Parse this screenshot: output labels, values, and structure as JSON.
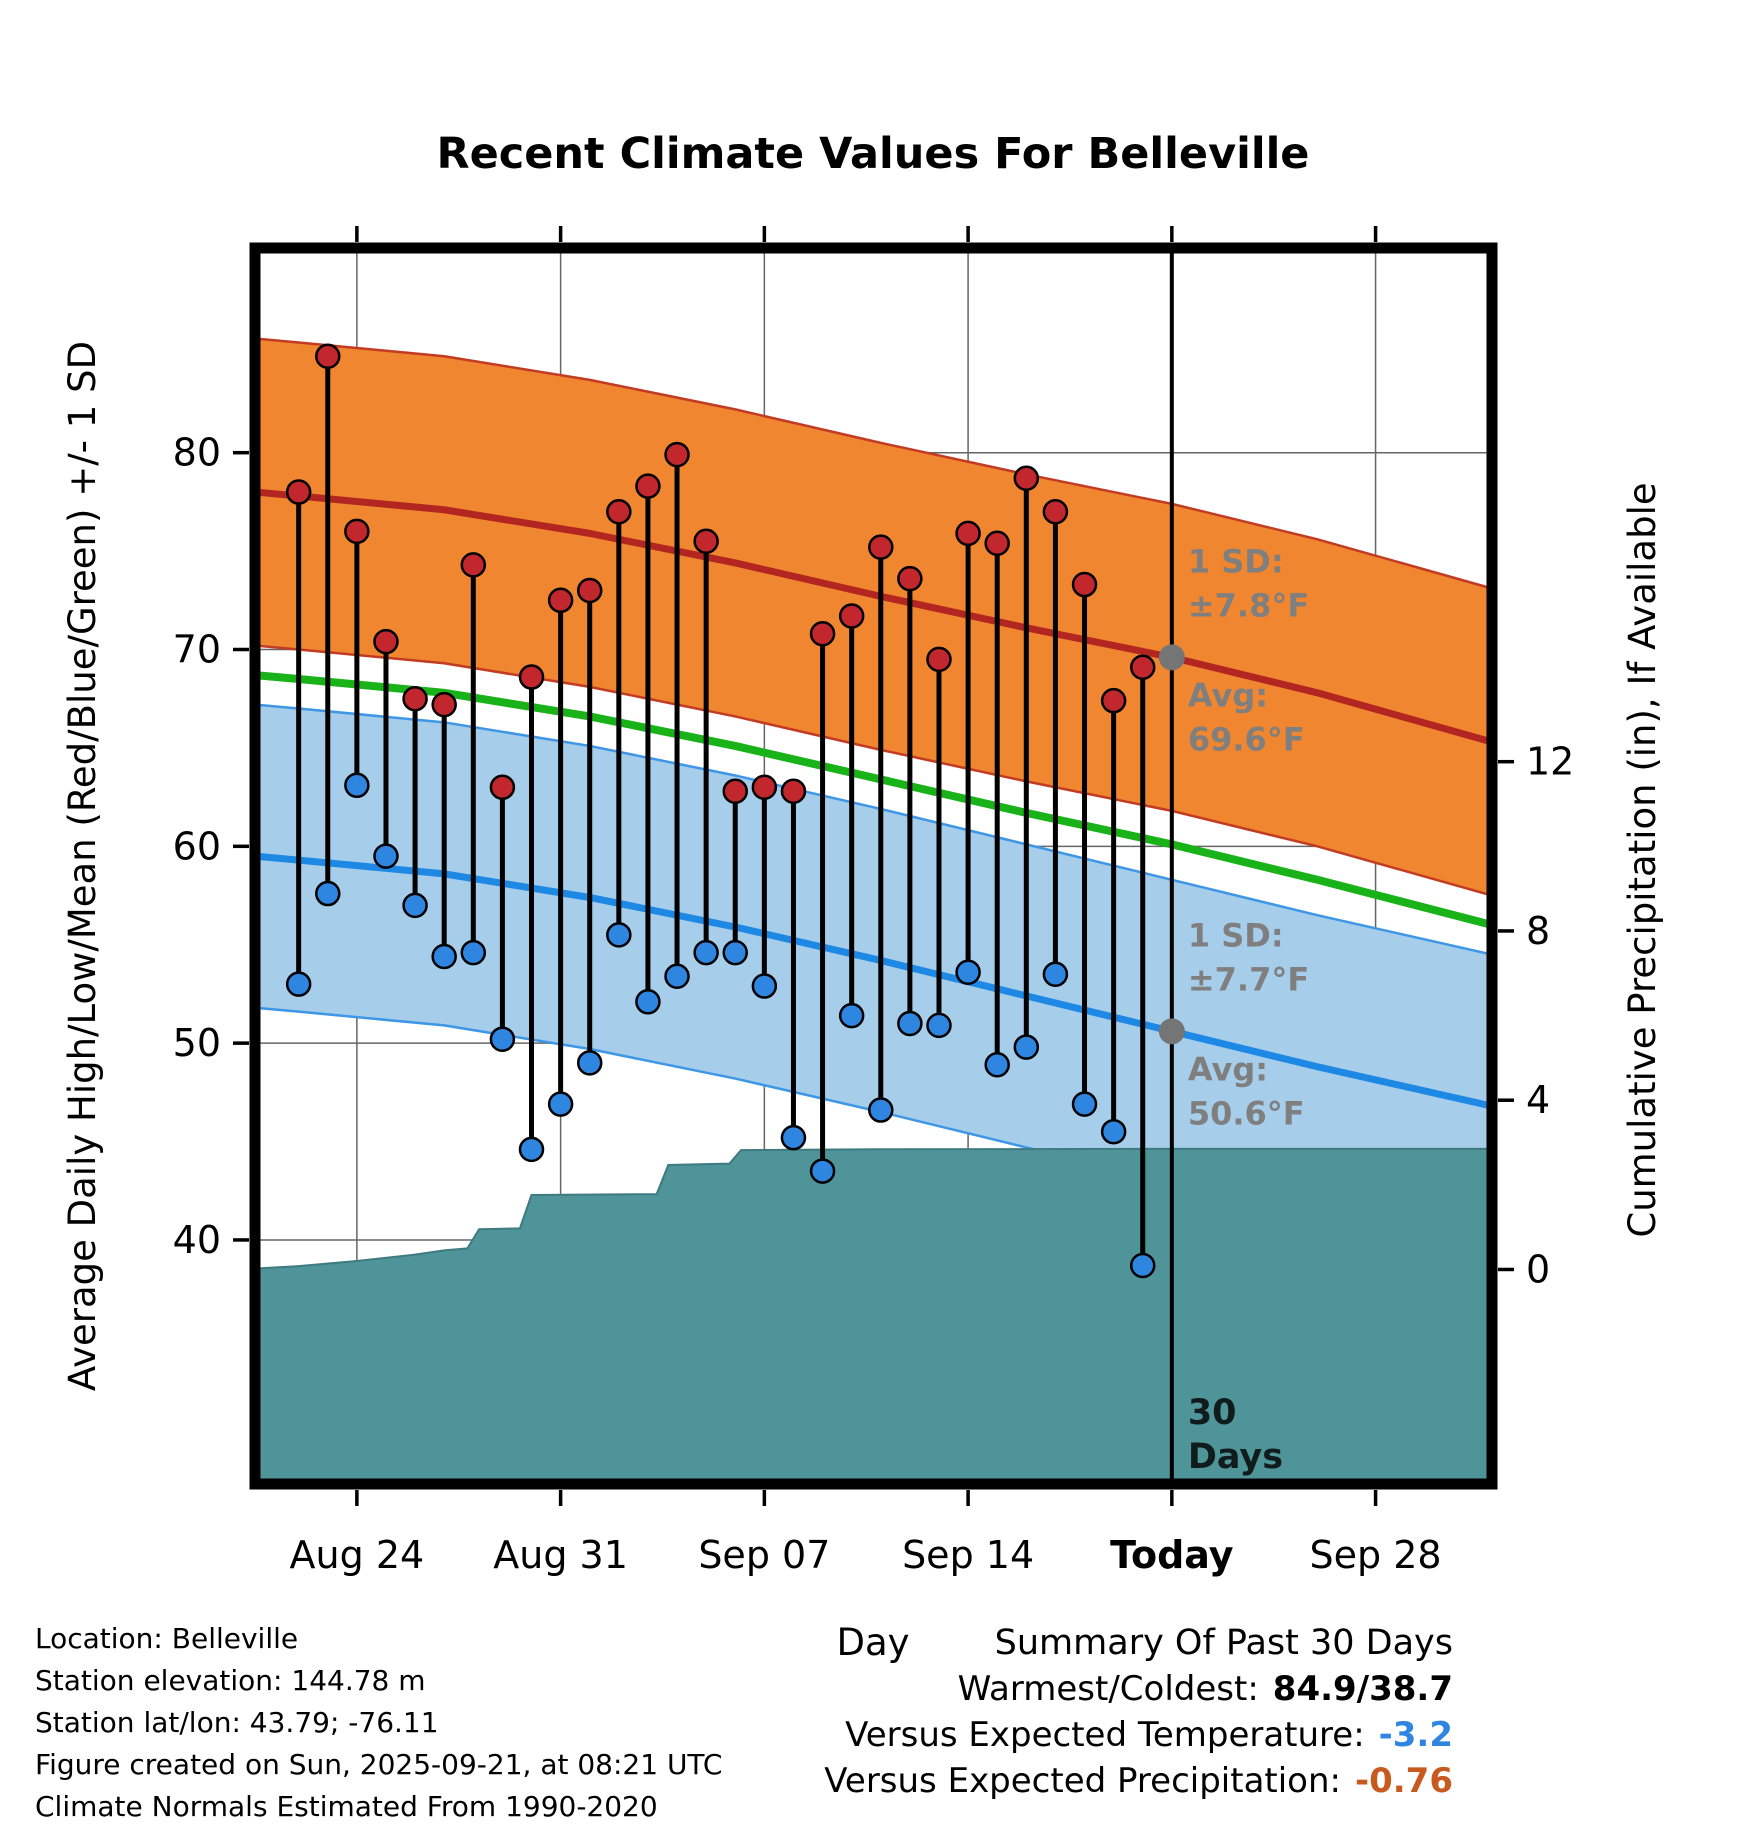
{
  "annotations": {
    "high_sd": [
      "1 SD:",
      "±7.8°F"
    ],
    "high_avg": [
      "Avg:",
      "69.6°F"
    ],
    "low_sd": [
      "1 SD:",
      "±7.7°F"
    ],
    "low_avg": [
      "Avg:",
      "50.6°F"
    ],
    "days30": [
      "30",
      "Days"
    ]
  },
  "footer_left": {
    "lines": [
      "Location: Belleville",
      "Station elevation: 144.78 m",
      "Station lat/lon: 43.79; -76.11",
      "Figure created on Sun, 2025-09-21, at 08:21 UTC",
      "Climate Normals Estimated From 1990-2020"
    ]
  },
  "summary": {
    "title": "Summary Of Past 30 Days",
    "warmest_coldest_label": "Warmest/Coldest:",
    "warmest_coldest_value": "84.9/38.7",
    "vs_temp_label": "Versus Expected Temperature:",
    "vs_temp_value": "-3.2",
    "vs_precip_label": "Versus Expected Precipitation:",
    "vs_precip_value": "-0.76"
  },
  "colors": {
    "high_band_fill": "#F0862F",
    "high_band_edge": "#C23B22",
    "high_mean_line": "#B22520",
    "low_band_fill": "#A6CDE9",
    "low_band_edge": "#3E97E6",
    "low_mean_line": "#1E88E5",
    "mean_line": "#19B219",
    "precip_fill": "#4F9499",
    "precip_edge": "#3E7A80",
    "stem": "#000000",
    "high_dot": "#C1272D",
    "low_dot": "#2E86E0",
    "gray_marker": "#757575"
  },
  "chart_data": {
    "type": "line",
    "title": "Recent Climate Values For Belleville",
    "xlabel": "Day",
    "ylabel_left": "Average Daily High/Low/Mean (Red/Blue/Green) +/- 1 SD",
    "ylabel_right": "Cumulative Precipitation (in), If Available",
    "x_unit": "days_since_Aug_22",
    "x_domain": [
      -1.5,
      41
    ],
    "x_ticks": [
      {
        "x": 2,
        "label": "Aug 24",
        "bold": false
      },
      {
        "x": 9,
        "label": "Aug 31",
        "bold": false
      },
      {
        "x": 16,
        "label": "Sep 07",
        "bold": false
      },
      {
        "x": 23,
        "label": "Sep 14",
        "bold": false
      },
      {
        "x": 30,
        "label": "Today",
        "bold": true
      },
      {
        "x": 37,
        "label": "Sep 28",
        "bold": false
      }
    ],
    "today_x": 30,
    "temp_axis": {
      "domain": [
        27.6,
        90.4
      ],
      "ticks": [
        40,
        50,
        60,
        70,
        80
      ]
    },
    "precip_axis": {
      "ticks": [
        0,
        4,
        8,
        12
      ],
      "zero_at_temp": 38.5,
      "degF_per_inch": 2.15
    },
    "normals": {
      "x": [
        -1.5,
        0,
        5,
        10,
        15,
        20,
        25,
        30,
        35,
        41
      ],
      "high_mean": [
        78.0,
        77.8,
        77.1,
        75.9,
        74.4,
        72.7,
        71.1,
        69.6,
        67.8,
        65.3
      ],
      "low_mean": [
        59.5,
        59.3,
        58.6,
        57.4,
        55.9,
        54.2,
        52.4,
        50.6,
        48.8,
        46.8
      ],
      "mean": [
        68.7,
        68.5,
        67.8,
        66.6,
        65.1,
        63.4,
        61.7,
        60.1,
        58.3,
        56.0
      ],
      "high_sd": 7.8,
      "low_sd": 7.7,
      "high_avg_today": 69.6,
      "low_avg_today": 50.6
    },
    "daily": {
      "start_day": 0,
      "high": [
        78.0,
        84.9,
        76.0,
        70.4,
        67.5,
        67.2,
        74.3,
        63.0,
        68.6,
        72.5,
        73.0,
        77.0,
        78.3,
        79.9,
        75.5,
        62.8,
        63.0,
        62.8,
        70.8,
        71.7,
        75.2,
        73.6,
        69.5,
        75.9,
        75.4,
        78.7,
        77.0,
        73.3,
        67.4,
        69.1
      ],
      "low": [
        53.0,
        57.6,
        63.1,
        59.5,
        57.0,
        54.4,
        54.6,
        50.2,
        44.6,
        46.9,
        49.0,
        55.5,
        52.1,
        53.4,
        54.6,
        54.6,
        52.9,
        45.2,
        43.5,
        51.4,
        46.6,
        51.0,
        50.9,
        53.6,
        48.9,
        49.8,
        53.5,
        46.9,
        45.5,
        38.7
      ]
    },
    "precip_cumulative": {
      "x": [
        -1.5,
        0,
        2,
        4,
        5,
        5.8,
        6.2,
        7.6,
        8.0,
        12.3,
        12.7,
        14.8,
        15.2,
        20,
        30,
        41
      ],
      "in": [
        0.02,
        0.08,
        0.2,
        0.35,
        0.45,
        0.5,
        0.95,
        0.97,
        1.76,
        1.78,
        2.47,
        2.5,
        2.82,
        2.84,
        2.85,
        2.85
      ]
    }
  }
}
